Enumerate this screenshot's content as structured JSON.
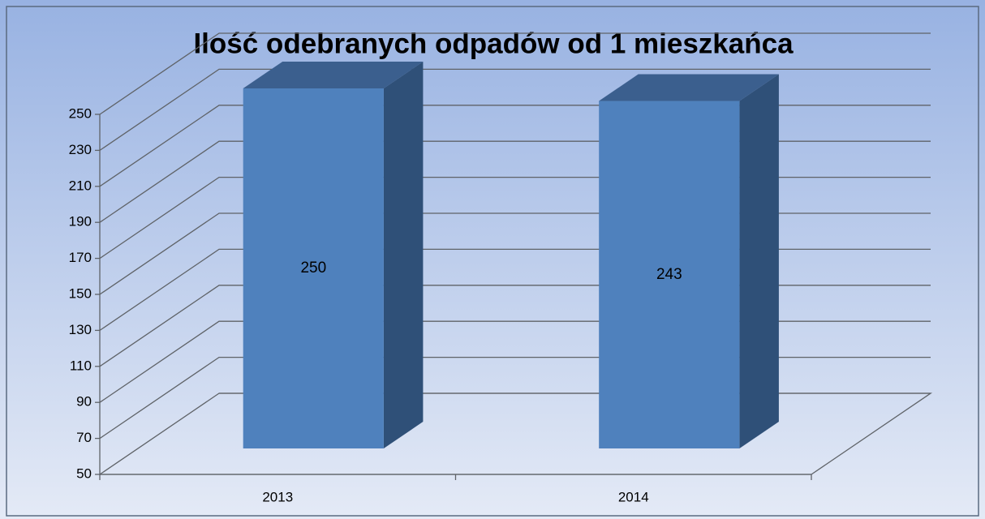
{
  "chart_data": {
    "type": "bar3d",
    "title": "Ilość odebranych odpadów od  1 mieszkańca",
    "categories": [
      "2013",
      "2014"
    ],
    "values": [
      250,
      243
    ],
    "color": "#4f81bd",
    "ylim": [
      50,
      250
    ],
    "yticks": [
      50,
      70,
      90,
      110,
      130,
      150,
      170,
      190,
      210,
      230,
      250
    ],
    "grid": true
  }
}
